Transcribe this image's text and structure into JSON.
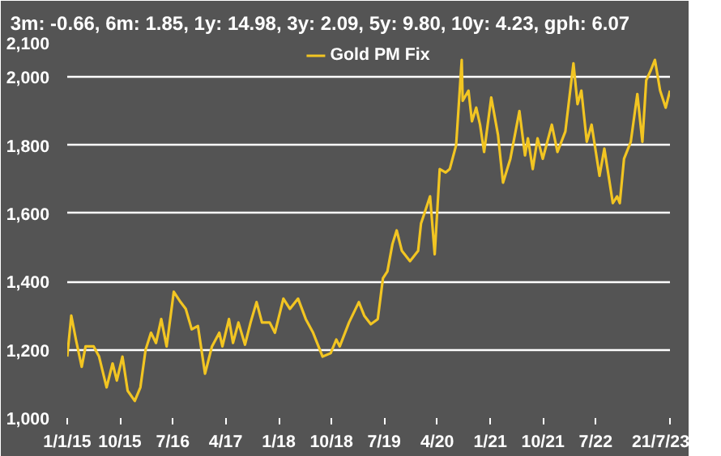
{
  "chart_data": {
    "type": "line",
    "title": "3m: -0.66,    6m: 1.85,    1y: 14.98,    3y: 2.09,    5y: 9.80,    10y: 4.23,    gph: 6.07",
    "x": [
      "2015-01-01",
      "2015-01-22",
      "2015-02-15",
      "2015-03-17",
      "2015-04-06",
      "2015-05-18",
      "2015-06-15",
      "2015-07-24",
      "2015-08-24",
      "2015-09-15",
      "2015-10-14",
      "2015-11-10",
      "2015-12-17",
      "2016-01-15",
      "2016-02-11",
      "2016-03-10",
      "2016-04-05",
      "2016-05-02",
      "2016-05-30",
      "2016-07-06",
      "2016-08-10",
      "2016-09-06",
      "2016-10-07",
      "2016-11-08",
      "2016-12-15",
      "2017-01-20",
      "2017-02-27",
      "2017-03-15",
      "2017-04-18",
      "2017-05-09",
      "2017-06-06",
      "2017-07-10",
      "2017-08-08",
      "2017-09-08",
      "2017-10-06",
      "2017-11-15",
      "2017-12-12",
      "2018-01-25",
      "2018-02-28",
      "2018-04-11",
      "2018-05-21",
      "2018-06-28",
      "2018-08-16",
      "2018-09-27",
      "2018-10-26",
      "2018-11-13",
      "2018-12-31",
      "2019-02-20",
      "2019-03-20",
      "2019-04-23",
      "2019-05-29",
      "2019-06-25",
      "2019-07-18",
      "2019-08-13",
      "2019-09-04",
      "2019-10-01",
      "2019-11-12",
      "2019-12-24",
      "2020-01-08",
      "2020-02-24",
      "2020-03-19",
      "2020-04-14",
      "2020-05-15",
      "2020-06-05",
      "2020-07-08",
      "2020-08-06",
      "2020-08-11",
      "2020-09-10",
      "2020-09-28",
      "2020-10-20",
      "2020-11-09",
      "2020-11-30",
      "2021-01-06",
      "2021-02-10",
      "2021-03-08",
      "2021-04-15",
      "2021-06-01",
      "2021-06-30",
      "2021-07-15",
      "2021-08-09",
      "2021-09-03",
      "2021-09-30",
      "2021-11-16",
      "2021-12-15",
      "2022-01-25",
      "2022-03-08",
      "2022-03-29",
      "2022-04-18",
      "2022-05-16",
      "2022-06-10",
      "2022-07-21",
      "2022-08-15",
      "2022-09-28",
      "2022-10-20",
      "2022-11-03",
      "2022-11-25",
      "2022-12-30",
      "2023-02-02",
      "2023-02-28",
      "2023-03-20",
      "2023-04-13",
      "2023-05-04",
      "2023-05-31",
      "2023-06-29",
      "2023-07-21"
    ],
    "series": [
      {
        "name": "Gold PM Fix",
        "color": "#f2c522",
        "values": [
          1180,
          1300,
          1230,
          1150,
          1210,
          1210,
          1180,
          1090,
          1160,
          1110,
          1180,
          1080,
          1050,
          1090,
          1200,
          1250,
          1220,
          1290,
          1210,
          1370,
          1340,
          1320,
          1260,
          1270,
          1130,
          1210,
          1250,
          1210,
          1290,
          1220,
          1280,
          1215,
          1280,
          1340,
          1280,
          1280,
          1250,
          1350,
          1320,
          1350,
          1290,
          1250,
          1180,
          1190,
          1230,
          1210,
          1280,
          1340,
          1300,
          1275,
          1290,
          1410,
          1430,
          1510,
          1550,
          1490,
          1460,
          1490,
          1570,
          1650,
          1480,
          1730,
          1720,
          1730,
          1800,
          2050,
          1930,
          1960,
          1870,
          1910,
          1860,
          1780,
          1940,
          1830,
          1690,
          1760,
          1900,
          1770,
          1820,
          1730,
          1820,
          1760,
          1860,
          1780,
          1840,
          2040,
          1920,
          1960,
          1810,
          1860,
          1710,
          1790,
          1630,
          1650,
          1630,
          1760,
          1810,
          1950,
          1810,
          1990,
          2020,
          2050,
          1960,
          1910,
          1960
        ]
      }
    ],
    "xlim": [
      "2015-01-01",
      "2023-07-21"
    ],
    "xticks": [
      {
        "value": "2015-01-01",
        "label": "1/1/15"
      },
      {
        "value": "2015-10-01",
        "label": "10/15"
      },
      {
        "value": "2016-07-01",
        "label": "7/16"
      },
      {
        "value": "2017-04-01",
        "label": "4/17"
      },
      {
        "value": "2018-01-01",
        "label": "1/18"
      },
      {
        "value": "2018-10-01",
        "label": "10/18"
      },
      {
        "value": "2019-07-01",
        "label": "7/19"
      },
      {
        "value": "2020-04-01",
        "label": "4/20"
      },
      {
        "value": "2021-01-01",
        "label": "1/21"
      },
      {
        "value": "2021-10-01",
        "label": "10/21"
      },
      {
        "value": "2022-07-01",
        "label": "7/22"
      },
      {
        "value": "2023-07-21",
        "label": "21/7/23"
      }
    ],
    "ylim": [
      1000,
      2100
    ],
    "yticks": [
      {
        "value": 1000,
        "label": "1,000"
      },
      {
        "value": 1200,
        "label": "1,200"
      },
      {
        "value": 1400,
        "label": "1,400"
      },
      {
        "value": 1600,
        "label": "1,600"
      },
      {
        "value": 1800,
        "label": "1,800"
      },
      {
        "value": 2000,
        "label": "2,000"
      },
      {
        "value": 2100,
        "label": "2,100"
      }
    ],
    "grid": "y",
    "legend": "top",
    "line_style": "solid"
  }
}
